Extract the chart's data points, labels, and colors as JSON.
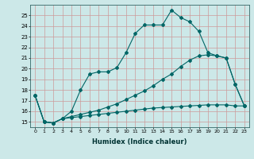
{
  "xlabel": "Humidex (Indice chaleur)",
  "bg_color": "#cce8e8",
  "grid_color": "#cc9999",
  "line_color": "#006666",
  "xlim": [
    -0.5,
    23.5
  ],
  "ylim": [
    14.5,
    26.0
  ],
  "yticks": [
    15,
    16,
    17,
    18,
    19,
    20,
    21,
    22,
    23,
    24,
    25
  ],
  "xticks": [
    0,
    1,
    2,
    3,
    4,
    5,
    6,
    7,
    8,
    9,
    10,
    11,
    12,
    13,
    14,
    15,
    16,
    17,
    18,
    19,
    20,
    21,
    22,
    23
  ],
  "line1_x": [
    0,
    1,
    2,
    3,
    4,
    5,
    6,
    7,
    8,
    9,
    10,
    11,
    12,
    13,
    14,
    15,
    16,
    17,
    18,
    19,
    20,
    21,
    22,
    23
  ],
  "line1_y": [
    17.5,
    15.0,
    14.9,
    15.3,
    16.0,
    18.0,
    19.5,
    19.7,
    19.7,
    20.1,
    21.5,
    23.3,
    24.1,
    24.1,
    24.1,
    25.5,
    24.8,
    24.4,
    23.5,
    21.5,
    21.2,
    21.0,
    18.5,
    16.5
  ],
  "line2_x": [
    0,
    1,
    2,
    3,
    4,
    5,
    6,
    7,
    8,
    9,
    10,
    11,
    12,
    13,
    14,
    15,
    16,
    17,
    18,
    19,
    20,
    21,
    22,
    23
  ],
  "line2_y": [
    17.5,
    15.0,
    14.9,
    15.3,
    15.5,
    15.7,
    15.9,
    16.1,
    16.4,
    16.7,
    17.1,
    17.5,
    17.9,
    18.4,
    19.0,
    19.5,
    20.2,
    20.8,
    21.2,
    21.3,
    21.2,
    21.0,
    18.5,
    16.5
  ],
  "line3_x": [
    0,
    1,
    2,
    3,
    4,
    5,
    6,
    7,
    8,
    9,
    10,
    11,
    12,
    13,
    14,
    15,
    16,
    17,
    18,
    19,
    20,
    21,
    22,
    23
  ],
  "line3_y": [
    17.5,
    15.0,
    14.9,
    15.3,
    15.4,
    15.5,
    15.6,
    15.7,
    15.8,
    15.9,
    16.0,
    16.1,
    16.2,
    16.3,
    16.35,
    16.4,
    16.45,
    16.5,
    16.55,
    16.6,
    16.6,
    16.6,
    16.5,
    16.5
  ]
}
